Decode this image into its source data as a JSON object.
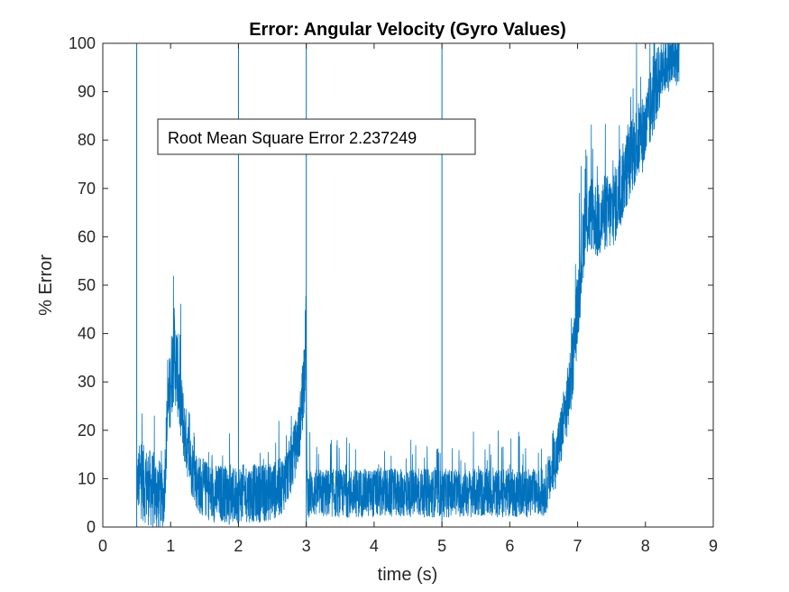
{
  "chart_data": {
    "type": "line",
    "title": "Error: Angular Velocity (Gyro Values)",
    "xlabel": "time (s)",
    "ylabel": "% Error",
    "xlim": [
      0,
      9
    ],
    "ylim": [
      0,
      100
    ],
    "xticks": [
      0,
      1,
      2,
      3,
      4,
      5,
      6,
      7,
      8,
      9
    ],
    "yticks": [
      0,
      10,
      20,
      30,
      40,
      50,
      60,
      70,
      80,
      90,
      100
    ],
    "grid": false,
    "line_color": "#0072BD",
    "annotation": "Root Mean Square Error 2.237249",
    "series": [
      {
        "x": [
          0.5,
          0.55,
          0.6,
          0.7,
          0.8,
          0.9,
          0.95,
          1.0,
          1.05,
          1.1,
          1.15,
          1.2,
          1.3,
          1.4,
          1.5,
          1.6,
          1.8,
          1.9,
          2.0,
          2.2,
          2.4,
          2.6,
          2.7,
          2.8,
          2.9,
          2.95,
          3.0,
          3.01,
          3.1,
          3.5,
          4.0,
          4.5,
          5.0,
          5.5,
          6.0,
          6.5,
          6.6,
          6.7,
          6.8,
          6.9,
          7.0,
          7.1,
          7.2,
          7.3,
          7.4,
          7.5,
          7.6,
          7.7,
          7.8,
          7.9,
          8.0,
          8.1,
          8.2,
          8.3,
          8.4,
          8.5
        ],
        "y": [
          9,
          10,
          9,
          8,
          7,
          6,
          22,
          30,
          36,
          32,
          25,
          20,
          13,
          9,
          8,
          7,
          7,
          6,
          7,
          7,
          7,
          8,
          10,
          14,
          20,
          28,
          40,
          7,
          7,
          7,
          7,
          7,
          7,
          7,
          7,
          7,
          10,
          15,
          22,
          30,
          45,
          62,
          65,
          63,
          65,
          65,
          68,
          73,
          77,
          80,
          82,
          88,
          93,
          96,
          96,
          97
        ],
        "noise_amplitude": [
          5,
          8,
          8,
          8,
          8,
          6,
          8,
          9,
          10,
          9,
          8,
          7,
          6,
          6,
          6,
          6,
          6,
          6,
          6,
          6,
          6,
          6,
          6,
          6,
          6,
          8,
          10,
          5,
          5,
          5,
          5,
          5,
          5,
          5,
          5,
          5,
          5,
          6,
          7,
          7,
          8,
          8,
          8,
          8,
          8,
          8,
          8,
          8,
          8,
          8,
          8,
          8,
          7,
          6,
          6,
          5
        ],
        "spikes_x": [
          0.5,
          2.0,
          3.0,
          5.0
        ]
      }
    ]
  }
}
